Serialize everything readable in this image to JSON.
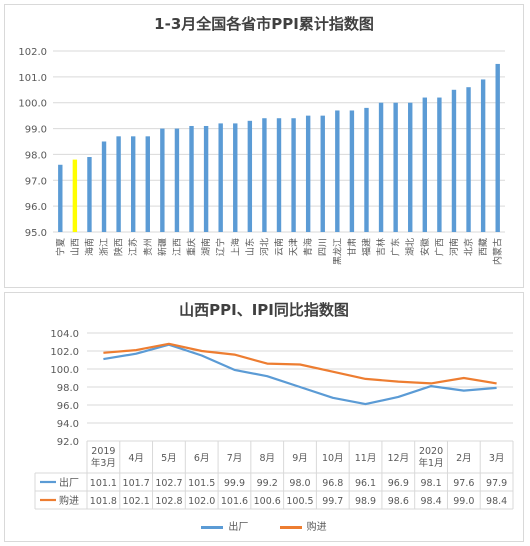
{
  "chart_data": [
    {
      "type": "bar",
      "title": "1-3月全国各省市PPI累计指数图",
      "ylim": [
        95.0,
        102.0
      ],
      "yticks": [
        "102.0",
        "101.0",
        "100.0",
        "99.0",
        "98.0",
        "97.0",
        "96.0",
        "95.0"
      ],
      "categories": [
        "宁夏",
        "山西",
        "海南",
        "浙江",
        "陕西",
        "江苏",
        "贵州",
        "新疆",
        "江西",
        "重庆",
        "湖南",
        "辽宁",
        "上海",
        "山东",
        "河北",
        "云南",
        "天津",
        "青海",
        "四川",
        "黑龙江",
        "甘肃",
        "福建",
        "吉林",
        "广东",
        "湖北",
        "安徽",
        "广西",
        "河南",
        "北京",
        "西藏",
        "内蒙古"
      ],
      "values": [
        97.6,
        97.8,
        97.9,
        98.5,
        98.7,
        98.7,
        98.7,
        99.0,
        99.0,
        99.1,
        99.1,
        99.2,
        99.2,
        99.3,
        99.4,
        99.4,
        99.4,
        99.5,
        99.5,
        99.7,
        99.7,
        99.8,
        100.0,
        100.0,
        100.0,
        100.2,
        100.2,
        100.5,
        100.6,
        100.9,
        101.5
      ],
      "highlight_category": "山西",
      "colors": {
        "bar": "#5b9bd5",
        "highlight": "#ffff00"
      },
      "grid": true
    },
    {
      "type": "line",
      "title": "山西PPI、IPI同比指数图",
      "ylim": [
        92.0,
        104.0
      ],
      "yticks": [
        "104.0",
        "102.0",
        "100.0",
        "98.0",
        "96.0",
        "94.0",
        "92.0"
      ],
      "categories": [
        [
          "2019",
          "年3月"
        ],
        [
          "4月"
        ],
        [
          "5月"
        ],
        [
          "6月"
        ],
        [
          "7月"
        ],
        [
          "8月"
        ],
        [
          "9月"
        ],
        [
          "10月"
        ],
        [
          "11月"
        ],
        [
          "12月"
        ],
        [
          "2020",
          "年1月"
        ],
        [
          "2月"
        ],
        [
          "3月"
        ]
      ],
      "series": [
        {
          "name": "出厂",
          "color": "#5b9bd5",
          "values": [
            101.1,
            101.7,
            102.7,
            101.5,
            99.9,
            99.2,
            98.0,
            96.8,
            96.1,
            96.9,
            98.1,
            97.6,
            97.9
          ]
        },
        {
          "name": "购进",
          "color": "#ed7d31",
          "values": [
            101.8,
            102.1,
            102.8,
            102.0,
            101.6,
            100.6,
            100.5,
            99.7,
            98.9,
            98.6,
            98.4,
            99.0,
            98.4
          ]
        }
      ],
      "data_table": true,
      "legend": "bottom",
      "grid": true
    }
  ]
}
